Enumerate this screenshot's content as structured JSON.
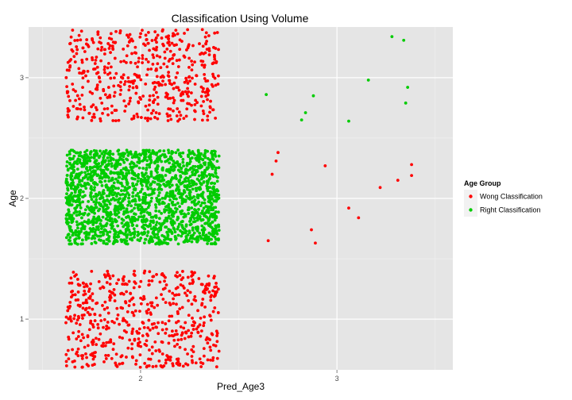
{
  "chart_data": {
    "type": "scatter",
    "title": "Classification Using Volume",
    "xlabel": "Pred_Age3",
    "ylabel": "Age",
    "xlim": [
      1.43,
      3.59
    ],
    "ylim": [
      0.58,
      3.42
    ],
    "x_ticks": [
      {
        "value": 2,
        "label": "2"
      },
      {
        "value": 3,
        "label": "3"
      }
    ],
    "y_ticks": [
      {
        "value": 1,
        "label": "1"
      },
      {
        "value": 2,
        "label": "2"
      },
      {
        "value": 3,
        "label": "3"
      }
    ],
    "grid": true,
    "legend": {
      "title": "Age Group",
      "placement": "right",
      "entries": [
        {
          "label": "Wong Classification",
          "color": "#ff0000"
        },
        {
          "label": "Right Classification",
          "color": "#00cc00"
        }
      ]
    },
    "series": [
      {
        "name": "Wong Classification",
        "color": "#ff0000",
        "points": [
          [
            2.65,
            1.65
          ],
          [
            2.89,
            1.63
          ],
          [
            2.87,
            1.74
          ],
          [
            2.67,
            2.2
          ],
          [
            2.69,
            2.31
          ],
          [
            2.7,
            2.38
          ],
          [
            2.94,
            2.27
          ],
          [
            3.06,
            1.92
          ],
          [
            3.11,
            1.84
          ],
          [
            3.22,
            2.09
          ],
          [
            3.31,
            2.15
          ],
          [
            3.38,
            2.19
          ],
          [
            3.38,
            2.28
          ]
        ],
        "clusters": [
          {
            "x_range": [
              1.62,
              2.4
            ],
            "y_range": [
              2.64,
              3.4
            ],
            "count": 520
          },
          {
            "x_range": [
              1.62,
              2.4
            ],
            "y_range": [
              0.6,
              1.4
            ],
            "count": 560
          }
        ]
      },
      {
        "name": "Right Classification",
        "color": "#00cc00",
        "points": [
          [
            2.64,
            2.86
          ],
          [
            2.82,
            2.65
          ],
          [
            2.84,
            2.71
          ],
          [
            2.88,
            2.85
          ],
          [
            3.06,
            2.64
          ],
          [
            3.16,
            2.98
          ],
          [
            3.28,
            3.34
          ],
          [
            3.34,
            3.31
          ],
          [
            3.35,
            2.79
          ],
          [
            3.36,
            2.92
          ]
        ],
        "clusters": [
          {
            "x_range": [
              1.62,
              2.4
            ],
            "y_range": [
              1.62,
              2.4
            ],
            "count": 1900
          }
        ]
      }
    ]
  }
}
